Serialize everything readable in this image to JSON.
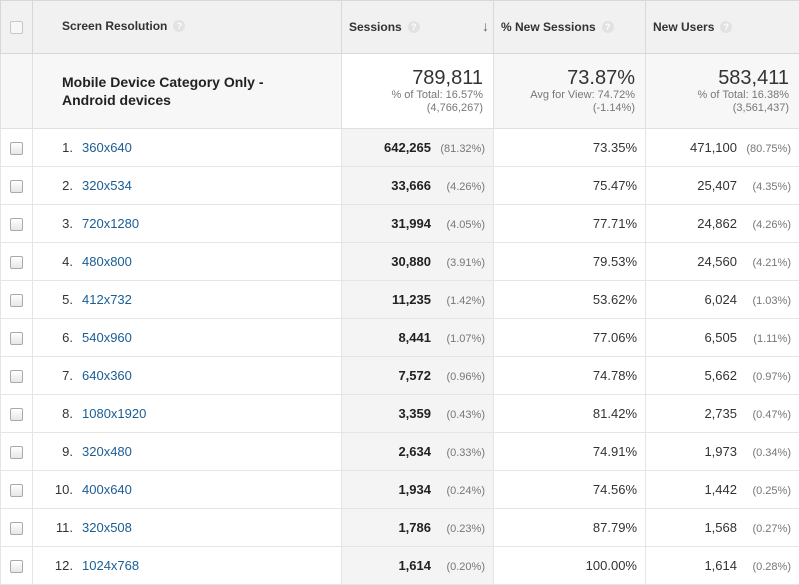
{
  "header": {
    "dimension_label": "Screen Resolution",
    "sessions_label": "Sessions",
    "pct_new_sessions_label": "% New Sessions",
    "new_users_label": "New Users",
    "help_glyph": "?",
    "sort_glyph": "↓"
  },
  "summary": {
    "segment_label": "Mobile Device Category Only - Android devices",
    "sessions": {
      "value": "789,811",
      "line1": "% of Total: 16.57%",
      "line2": "(4,766,267)"
    },
    "pct_new_sessions": {
      "value": "73.87%",
      "line1": "Avg for View: 74.72%",
      "line2": "(-1.14%)"
    },
    "new_users": {
      "value": "583,411",
      "line1": "% of Total: 16.38%",
      "line2": "(3,561,437)"
    }
  },
  "rows": [
    {
      "index": "1.",
      "resolution": "360x640",
      "sessions": "642,265",
      "sessions_pct": "(81.32%)",
      "pct_new": "73.35%",
      "new_users": "471,100",
      "new_users_pct": "(80.75%)"
    },
    {
      "index": "2.",
      "resolution": "320x534",
      "sessions": "33,666",
      "sessions_pct": "(4.26%)",
      "pct_new": "75.47%",
      "new_users": "25,407",
      "new_users_pct": "(4.35%)"
    },
    {
      "index": "3.",
      "resolution": "720x1280",
      "sessions": "31,994",
      "sessions_pct": "(4.05%)",
      "pct_new": "77.71%",
      "new_users": "24,862",
      "new_users_pct": "(4.26%)"
    },
    {
      "index": "4.",
      "resolution": "480x800",
      "sessions": "30,880",
      "sessions_pct": "(3.91%)",
      "pct_new": "79.53%",
      "new_users": "24,560",
      "new_users_pct": "(4.21%)"
    },
    {
      "index": "5.",
      "resolution": "412x732",
      "sessions": "11,235",
      "sessions_pct": "(1.42%)",
      "pct_new": "53.62%",
      "new_users": "6,024",
      "new_users_pct": "(1.03%)"
    },
    {
      "index": "6.",
      "resolution": "540x960",
      "sessions": "8,441",
      "sessions_pct": "(1.07%)",
      "pct_new": "77.06%",
      "new_users": "6,505",
      "new_users_pct": "(1.11%)"
    },
    {
      "index": "7.",
      "resolution": "640x360",
      "sessions": "7,572",
      "sessions_pct": "(0.96%)",
      "pct_new": "74.78%",
      "new_users": "5,662",
      "new_users_pct": "(0.97%)"
    },
    {
      "index": "8.",
      "resolution": "1080x1920",
      "sessions": "3,359",
      "sessions_pct": "(0.43%)",
      "pct_new": "81.42%",
      "new_users": "2,735",
      "new_users_pct": "(0.47%)"
    },
    {
      "index": "9.",
      "resolution": "320x480",
      "sessions": "2,634",
      "sessions_pct": "(0.33%)",
      "pct_new": "74.91%",
      "new_users": "1,973",
      "new_users_pct": "(0.34%)"
    },
    {
      "index": "10.",
      "resolution": "400x640",
      "sessions": "1,934",
      "sessions_pct": "(0.24%)",
      "pct_new": "74.56%",
      "new_users": "1,442",
      "new_users_pct": "(0.25%)"
    },
    {
      "index": "11.",
      "resolution": "320x508",
      "sessions": "1,786",
      "sessions_pct": "(0.23%)",
      "pct_new": "87.79%",
      "new_users": "1,568",
      "new_users_pct": "(0.27%)"
    },
    {
      "index": "12.",
      "resolution": "1024x768",
      "sessions": "1,614",
      "sessions_pct": "(0.20%)",
      "pct_new": "100.00%",
      "new_users": "1,614",
      "new_users_pct": "(0.28%)"
    }
  ]
}
